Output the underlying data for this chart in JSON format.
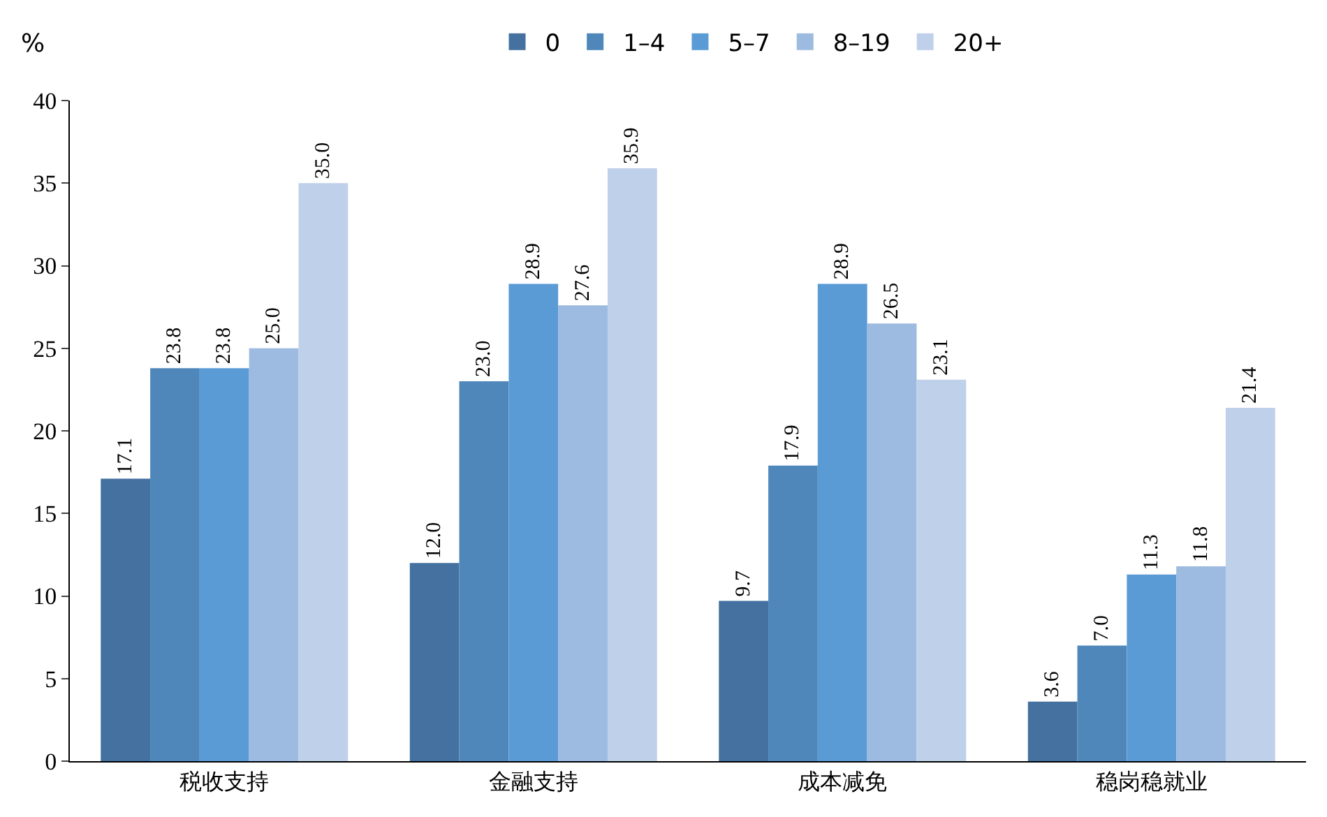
{
  "chart_data": {
    "type": "bar",
    "ylabel": "%",
    "categories": [
      "税收支持",
      "金融支持",
      "成本减免",
      "稳岗稳就业"
    ],
    "series": [
      {
        "name": "0",
        "color": "#44719f",
        "values": [
          17.1,
          12.0,
          9.7,
          3.6
        ],
        "value_labels": [
          "17.1",
          "12.0",
          "9.7",
          "3.6"
        ]
      },
      {
        "name": "1–4",
        "color": "#4f87bb",
        "values": [
          23.8,
          23.0,
          17.9,
          7.0
        ],
        "value_labels": [
          "23.8",
          "23.0",
          "17.9",
          "7.0"
        ]
      },
      {
        "name": "5–7",
        "color": "#5b9bd5",
        "values": [
          23.8,
          28.9,
          28.9,
          11.3
        ],
        "value_labels": [
          "23.8",
          "28.9",
          "28.9",
          "11.3"
        ]
      },
      {
        "name": "8–19",
        "color": "#9dbbe0",
        "values": [
          25.0,
          27.6,
          26.5,
          11.8
        ],
        "value_labels": [
          "25.0",
          "27.6",
          "26.5",
          "11.8"
        ]
      },
      {
        "name": "20+",
        "color": "#bfd0ea",
        "values": [
          35.0,
          35.9,
          23.1,
          21.4
        ],
        "value_labels": [
          "35.0",
          "35.9",
          "23.1",
          "21.4"
        ]
      }
    ],
    "ylim": [
      0,
      40
    ],
    "yticks": [
      0,
      5,
      10,
      15,
      20,
      25,
      30,
      35,
      40
    ],
    "legend": "top"
  }
}
